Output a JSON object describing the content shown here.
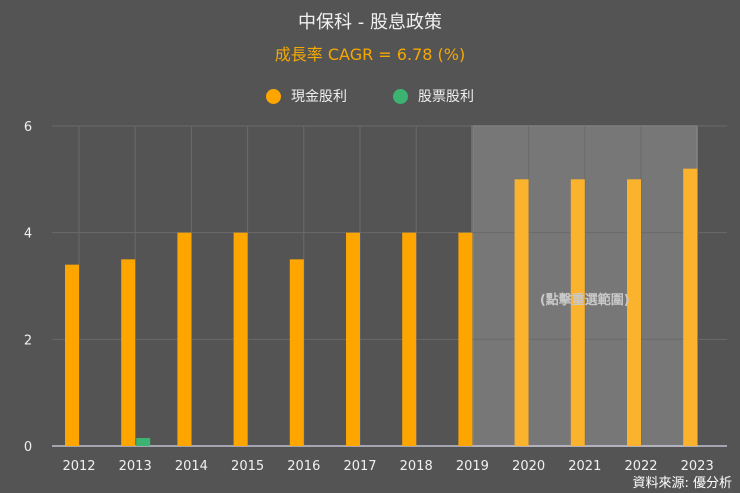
{
  "colors": {
    "cash": "#ffa500",
    "cash_highlight": "#fbb32e",
    "stock": "#3cb371",
    "background": "#545454",
    "highlight": "#777777"
  },
  "chart_data": {
    "type": "bar",
    "title": "中保科 - 股息政策",
    "subtitle": "成長率 CAGR = 6.78 (%)",
    "categories": [
      "2012",
      "2013",
      "2014",
      "2015",
      "2016",
      "2017",
      "2018",
      "2019",
      "2020",
      "2021",
      "2022",
      "2023"
    ],
    "series": [
      {
        "name": "現金股利",
        "values": [
          3.4,
          3.5,
          4,
          4,
          3.5,
          4,
          4,
          4,
          5,
          5,
          5,
          5.2
        ]
      },
      {
        "name": "股票股利",
        "values": [
          0,
          0.15,
          0,
          0,
          0,
          0,
          0,
          0,
          0,
          0,
          0,
          0
        ]
      }
    ],
    "ylim": [
      0,
      6
    ],
    "yticks": [
      "0",
      "2",
      "4",
      "6"
    ],
    "grid": true,
    "legend": "top",
    "highlight_range": [
      "2019",
      "2023"
    ],
    "highlight_label": "(點擊重選範圍)"
  },
  "source": "資料來源: 優分析"
}
